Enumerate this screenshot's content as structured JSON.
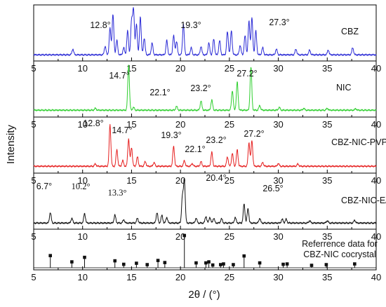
{
  "chart_data": {
    "type": "line",
    "xlabel": "2θ / (°)",
    "ylabel": "Intensity",
    "xlim": [
      5,
      40
    ],
    "x_ticks": [
      5,
      10,
      15,
      20,
      25,
      30,
      35,
      40
    ],
    "grid": false,
    "panels": [
      {
        "name": "CBZ",
        "color": "#2b2bd6",
        "peak_labels": [
          "12.8°",
          "19.3°",
          "27.3°"
        ],
        "peaks": [
          {
            "x": 9.0,
            "y": 0.12
          },
          {
            "x": 12.3,
            "y": 0.18
          },
          {
            "x": 12.8,
            "y": 0.55
          },
          {
            "x": 13.1,
            "y": 0.85
          },
          {
            "x": 13.5,
            "y": 0.3
          },
          {
            "x": 14.2,
            "y": 0.15
          },
          {
            "x": 14.6,
            "y": 0.5
          },
          {
            "x": 15.0,
            "y": 0.7
          },
          {
            "x": 15.2,
            "y": 0.96
          },
          {
            "x": 15.5,
            "y": 0.65
          },
          {
            "x": 15.9,
            "y": 0.8
          },
          {
            "x": 16.3,
            "y": 0.35
          },
          {
            "x": 17.1,
            "y": 0.25
          },
          {
            "x": 18.6,
            "y": 0.3
          },
          {
            "x": 19.3,
            "y": 0.4
          },
          {
            "x": 19.6,
            "y": 0.28
          },
          {
            "x": 20.3,
            "y": 0.65
          },
          {
            "x": 21.1,
            "y": 0.15
          },
          {
            "x": 22.1,
            "y": 0.18
          },
          {
            "x": 22.9,
            "y": 0.25
          },
          {
            "x": 23.4,
            "y": 0.33
          },
          {
            "x": 24.0,
            "y": 0.3
          },
          {
            "x": 24.8,
            "y": 0.48
          },
          {
            "x": 25.2,
            "y": 0.5
          },
          {
            "x": 26.1,
            "y": 0.2
          },
          {
            "x": 26.6,
            "y": 0.4
          },
          {
            "x": 27.0,
            "y": 0.7
          },
          {
            "x": 27.3,
            "y": 0.78
          },
          {
            "x": 27.7,
            "y": 0.5
          },
          {
            "x": 28.4,
            "y": 0.15
          },
          {
            "x": 29.8,
            "y": 0.12
          },
          {
            "x": 31.8,
            "y": 0.12
          },
          {
            "x": 33.2,
            "y": 0.1
          },
          {
            "x": 35.1,
            "y": 0.1
          },
          {
            "x": 37.6,
            "y": 0.15
          }
        ]
      },
      {
        "name": "NIC",
        "color": "#2fcf2f",
        "peak_labels": [
          "14.7°",
          "22.1°",
          "23.2°",
          "27.2°"
        ],
        "peaks": [
          {
            "x": 11.3,
            "y": 0.04
          },
          {
            "x": 14.7,
            "y": 0.95
          },
          {
            "x": 15.2,
            "y": 0.06
          },
          {
            "x": 19.6,
            "y": 0.08
          },
          {
            "x": 22.1,
            "y": 0.2
          },
          {
            "x": 23.2,
            "y": 0.22
          },
          {
            "x": 25.3,
            "y": 0.42
          },
          {
            "x": 25.8,
            "y": 0.6
          },
          {
            "x": 27.2,
            "y": 0.92
          },
          {
            "x": 28.1,
            "y": 0.1
          },
          {
            "x": 30.1,
            "y": 0.06
          },
          {
            "x": 32.6,
            "y": 0.04
          },
          {
            "x": 35.0,
            "y": 0.04
          },
          {
            "x": 37.9,
            "y": 0.03
          }
        ]
      },
      {
        "name": "CBZ-NIC-PVP",
        "color": "#e62020",
        "peak_labels": [
          "12.8°",
          "14.7°",
          "19.3°",
          "22.1°",
          "23.2°",
          "27.2°"
        ],
        "peaks": [
          {
            "x": 11.3,
            "y": 0.05
          },
          {
            "x": 12.8,
            "y": 0.88
          },
          {
            "x": 13.5,
            "y": 0.35
          },
          {
            "x": 14.1,
            "y": 0.12
          },
          {
            "x": 14.7,
            "y": 0.58
          },
          {
            "x": 15.0,
            "y": 0.4
          },
          {
            "x": 15.6,
            "y": 0.2
          },
          {
            "x": 16.4,
            "y": 0.1
          },
          {
            "x": 17.3,
            "y": 0.08
          },
          {
            "x": 19.3,
            "y": 0.42
          },
          {
            "x": 20.4,
            "y": 0.12
          },
          {
            "x": 21.2,
            "y": 0.06
          },
          {
            "x": 22.1,
            "y": 0.1
          },
          {
            "x": 23.2,
            "y": 0.3
          },
          {
            "x": 24.8,
            "y": 0.2
          },
          {
            "x": 25.3,
            "y": 0.28
          },
          {
            "x": 25.8,
            "y": 0.35
          },
          {
            "x": 27.0,
            "y": 0.5
          },
          {
            "x": 27.3,
            "y": 0.55
          },
          {
            "x": 28.4,
            "y": 0.08
          },
          {
            "x": 30.0,
            "y": 0.06
          },
          {
            "x": 32.0,
            "y": 0.05
          }
        ]
      },
      {
        "name": "CBZ-NIC-E/W",
        "color": "#111111",
        "peak_labels": [
          "6.7°",
          "10.2°",
          "13.3°",
          "20.4°",
          "26.5°"
        ],
        "peaks": [
          {
            "x": 6.7,
            "y": 0.22
          },
          {
            "x": 8.9,
            "y": 0.1
          },
          {
            "x": 10.2,
            "y": 0.2
          },
          {
            "x": 13.3,
            "y": 0.17
          },
          {
            "x": 14.2,
            "y": 0.07
          },
          {
            "x": 15.6,
            "y": 0.1
          },
          {
            "x": 17.6,
            "y": 0.22
          },
          {
            "x": 18.1,
            "y": 0.16
          },
          {
            "x": 18.6,
            "y": 0.12
          },
          {
            "x": 20.2,
            "y": 0.55
          },
          {
            "x": 20.4,
            "y": 0.9
          },
          {
            "x": 21.6,
            "y": 0.1
          },
          {
            "x": 22.6,
            "y": 0.14
          },
          {
            "x": 23.0,
            "y": 0.12
          },
          {
            "x": 23.4,
            "y": 0.1
          },
          {
            "x": 24.2,
            "y": 0.09
          },
          {
            "x": 25.6,
            "y": 0.12
          },
          {
            "x": 26.5,
            "y": 0.4
          },
          {
            "x": 26.9,
            "y": 0.3
          },
          {
            "x": 28.1,
            "y": 0.1
          },
          {
            "x": 30.4,
            "y": 0.08
          },
          {
            "x": 30.8,
            "y": 0.08
          },
          {
            "x": 33.2,
            "y": 0.05
          },
          {
            "x": 35.0,
            "y": 0.05
          },
          {
            "x": 37.8,
            "y": 0.06
          }
        ]
      },
      {
        "name": "Referrence data for CBZ-NIC cocrystal",
        "name_lines": [
          "Referrence data for",
          "CBZ-NIC cocrystal"
        ],
        "color": "#111111",
        "style": "stick",
        "sticks": [
          {
            "x": 6.7,
            "y": 0.35
          },
          {
            "x": 8.9,
            "y": 0.17
          },
          {
            "x": 10.2,
            "y": 0.3
          },
          {
            "x": 13.3,
            "y": 0.2
          },
          {
            "x": 14.2,
            "y": 0.1
          },
          {
            "x": 15.5,
            "y": 0.13
          },
          {
            "x": 16.6,
            "y": 0.09
          },
          {
            "x": 17.7,
            "y": 0.21
          },
          {
            "x": 18.4,
            "y": 0.15
          },
          {
            "x": 20.4,
            "y": 0.93
          },
          {
            "x": 21.6,
            "y": 0.14
          },
          {
            "x": 22.6,
            "y": 0.14
          },
          {
            "x": 22.9,
            "y": 0.17
          },
          {
            "x": 23.3,
            "y": 0.08
          },
          {
            "x": 24.1,
            "y": 0.09
          },
          {
            "x": 24.4,
            "y": 0.11
          },
          {
            "x": 25.4,
            "y": 0.09
          },
          {
            "x": 26.5,
            "y": 0.34
          },
          {
            "x": 28.1,
            "y": 0.14
          },
          {
            "x": 30.5,
            "y": 0.1
          },
          {
            "x": 30.9,
            "y": 0.11
          },
          {
            "x": 33.4,
            "y": 0.07
          },
          {
            "x": 34.9,
            "y": 0.09
          },
          {
            "x": 37.8,
            "y": 0.11
          }
        ]
      }
    ]
  }
}
